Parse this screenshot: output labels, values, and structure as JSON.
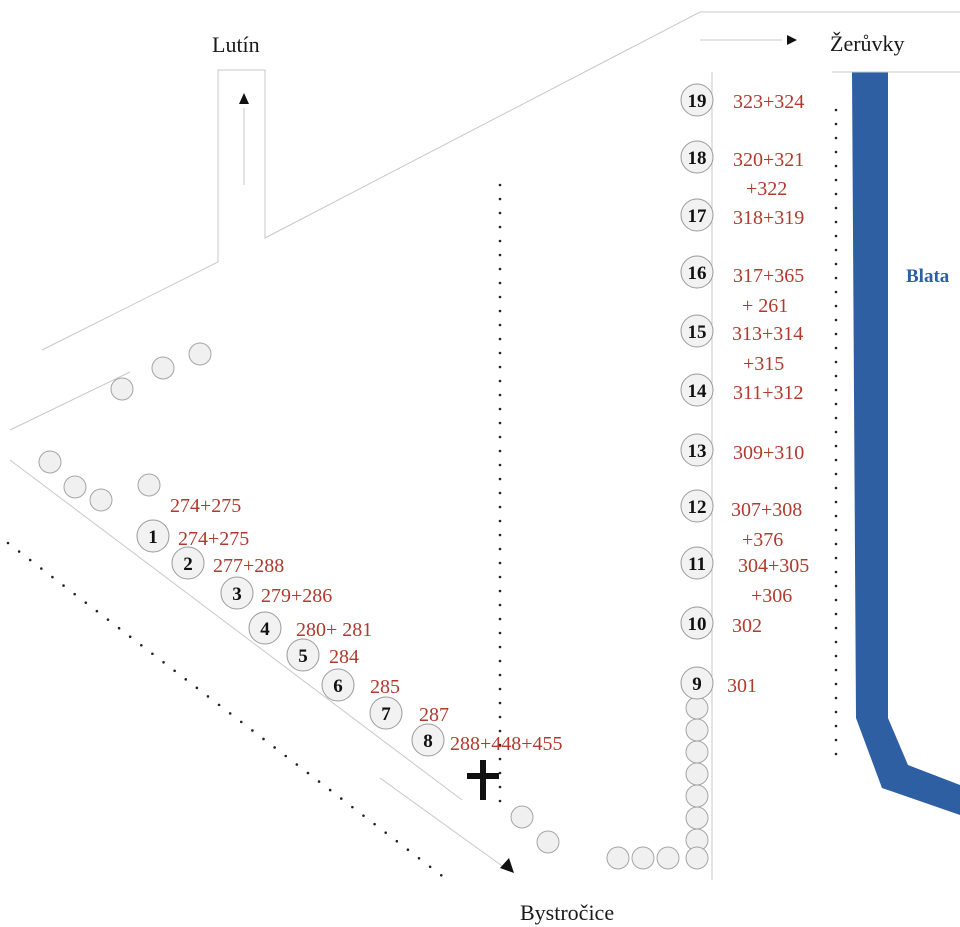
{
  "places": {
    "north": "Lutín",
    "northeast": "Žerůvky",
    "south": "Bystročice",
    "river": "Blata"
  },
  "colors": {
    "river": "#2f5fa3",
    "parcel_text": "#b03a2e",
    "tree_fill": "#f0f0f0"
  },
  "icons": {
    "cross": "cross-icon",
    "arrow": "arrow-icon",
    "tree": "tree-icon"
  },
  "trees": [
    {
      "num": "1",
      "parcels": [
        "274+275"
      ]
    },
    {
      "num": "2",
      "parcels": [
        "277+288"
      ]
    },
    {
      "num": "3",
      "parcels": [
        "279+286"
      ]
    },
    {
      "num": "4",
      "parcels": [
        "280+ 281"
      ]
    },
    {
      "num": "5",
      "parcels": [
        "284"
      ]
    },
    {
      "num": "6",
      "parcels": [
        "285"
      ]
    },
    {
      "num": "7",
      "parcels": [
        "287"
      ]
    },
    {
      "num": "8",
      "parcels": [
        "288+448+455"
      ]
    },
    {
      "num": "9",
      "parcels": [
        "301"
      ]
    },
    {
      "num": "10",
      "parcels": [
        "302"
      ]
    },
    {
      "num": "11",
      "parcels": [
        "304+305",
        "+306"
      ]
    },
    {
      "num": "12",
      "parcels": [
        "307+308",
        "+376"
      ]
    },
    {
      "num": "13",
      "parcels": [
        "309+310"
      ]
    },
    {
      "num": "14",
      "parcels": [
        "311+312"
      ]
    },
    {
      "num": "15",
      "parcels": [
        "313+314",
        "+315"
      ]
    },
    {
      "num": "16",
      "parcels": [
        "317+365",
        "+ 261"
      ]
    },
    {
      "num": "17",
      "parcels": [
        "318+319"
      ]
    },
    {
      "num": "18",
      "parcels": [
        "320+321",
        "+322"
      ]
    },
    {
      "num": "19",
      "parcels": [
        "323+324"
      ]
    }
  ],
  "extra_parcel": "274+275"
}
